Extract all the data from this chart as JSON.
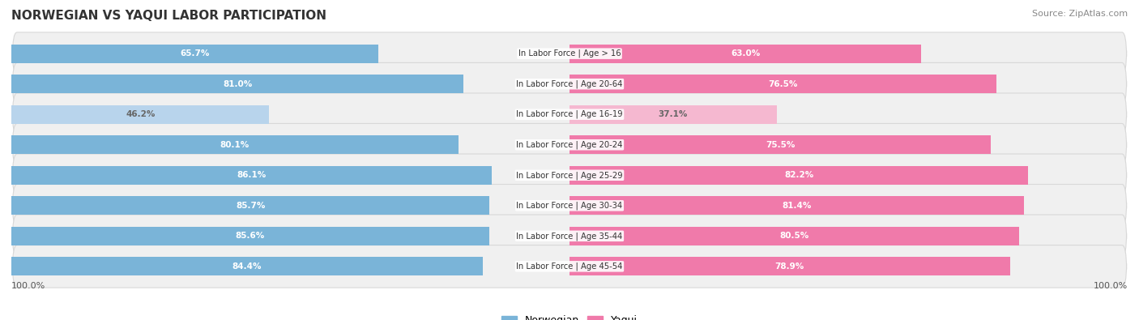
{
  "title": "NORWEGIAN VS YAQUI LABOR PARTICIPATION",
  "source": "Source: ZipAtlas.com",
  "categories": [
    "In Labor Force | Age > 16",
    "In Labor Force | Age 20-64",
    "In Labor Force | Age 16-19",
    "In Labor Force | Age 20-24",
    "In Labor Force | Age 25-29",
    "In Labor Force | Age 30-34",
    "In Labor Force | Age 35-44",
    "In Labor Force | Age 45-54"
  ],
  "norwegian": [
    65.7,
    81.0,
    46.2,
    80.1,
    86.1,
    85.7,
    85.6,
    84.4
  ],
  "yaqui": [
    63.0,
    76.5,
    37.1,
    75.5,
    82.2,
    81.4,
    80.5,
    78.9
  ],
  "norwegian_color": "#7ab4d8",
  "norwegian_light_color": "#b8d4ec",
  "yaqui_color": "#f07aaa",
  "yaqui_light_color": "#f5b8d0",
  "row_bg_color": "#f0f0f0",
  "row_border_color": "#d8d8d8",
  "bar_height": 0.62,
  "max_val": 100.0,
  "legend_norwegian": "Norwegian",
  "legend_yaqui": "Yaqui",
  "left_axis_label": "100.0%",
  "right_axis_label": "100.0%"
}
